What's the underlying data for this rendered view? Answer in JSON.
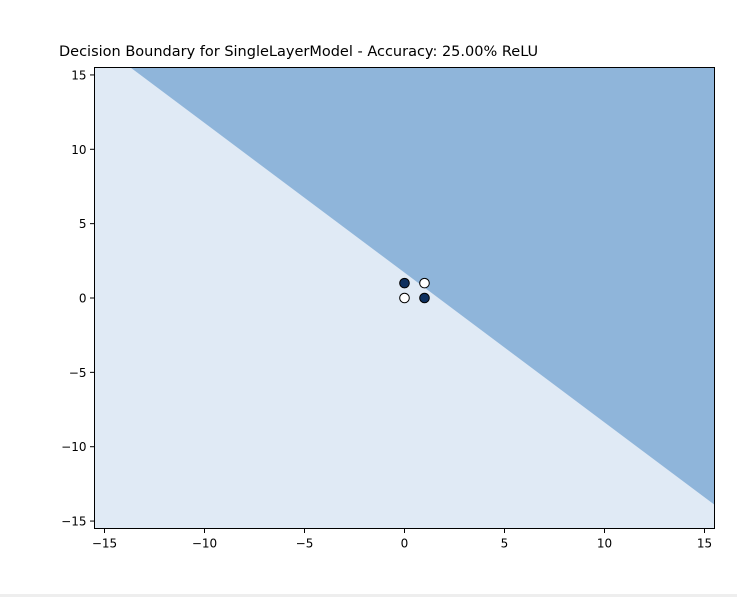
{
  "chart_data": {
    "type": "scatter",
    "title": "Decision Boundary for SingleLayerModel - Accuracy: 25.00% ReLU",
    "xlabel": "",
    "ylabel": "",
    "xlim": [
      -15.5,
      15.5
    ],
    "ylim": [
      -15.5,
      15.5
    ],
    "xticks": [
      -15,
      -10,
      -5,
      0,
      5,
      10,
      15
    ],
    "yticks": [
      -15,
      -10,
      -5,
      0,
      5,
      10,
      15
    ],
    "xtick_labels": [
      "−15",
      "−10",
      "−5",
      "0",
      "5",
      "10",
      "15"
    ],
    "ytick_labels": [
      "−15",
      "−10",
      "−5",
      "0",
      "5",
      "10",
      "15"
    ],
    "grid": false,
    "decision_boundary": {
      "line": [
        [
          -13.7,
          15.5
        ],
        [
          15.5,
          -13.9
        ]
      ],
      "class_1_region": "upper-right",
      "class_0_region": "lower-left",
      "class_1_color": "#8fb5da",
      "class_0_color": "#e0eaf5"
    },
    "points": [
      {
        "x": 0,
        "y": 0,
        "class": 0,
        "color": "#ffffff"
      },
      {
        "x": 0,
        "y": 1,
        "class": 1,
        "color": "#0d2f5e"
      },
      {
        "x": 1,
        "y": 0,
        "class": 1,
        "color": "#0d2f5e"
      },
      {
        "x": 1,
        "y": 1,
        "class": 0,
        "color": "#ffffff"
      }
    ]
  }
}
